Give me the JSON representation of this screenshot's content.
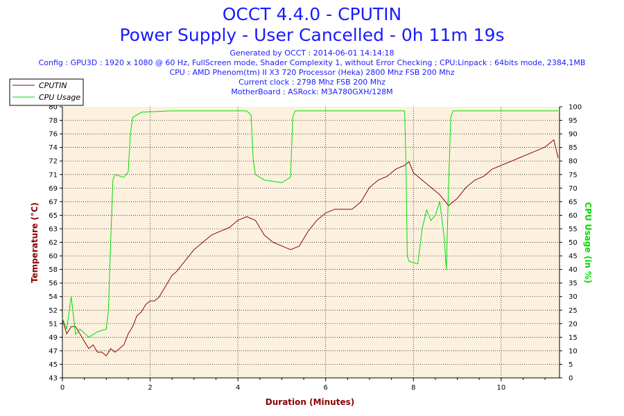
{
  "header": {
    "title": "OCCT 4.4.0 - CPUTIN",
    "subtitle": "Power Supply - User Cancelled - 0h 11m 19s",
    "info": [
      "Generated by OCCT : 2014-06-01 14:14:18",
      "Config : GPU3D : 1920 x 1080 @ 60 Hz, FullScreen mode, Shader Complexity 1, without Error Checking ; CPU:Linpack : 64bits mode, 2384,1MB",
      "CPU : AMD Phenom(tm) II X3 720 Processor (Heka) 2800 Mhz FSB 200 Mhz",
      "Current clock : 2798 Mhz FSB 200 Mhz",
      "MotherBoard : ASRock: M3A780GXH/128M"
    ]
  },
  "colors": {
    "title": "#1a1aff",
    "temperature": "#8b0000",
    "cpu_usage": "#00dd00",
    "plot_background": "#fcf1df",
    "grid": "#000000",
    "axis_title": "#8b0000"
  },
  "chart_data": {
    "type": "line",
    "xlabel": "Duration (Minutes)",
    "ylabel": "Temperature (°C)",
    "y2label": "CPU Usage (in %)",
    "xlim": [
      0,
      11.33
    ],
    "ylim": [
      43,
      80
    ],
    "y2lim": [
      0,
      100
    ],
    "x_ticks": [
      "0",
      "2",
      "4",
      "6",
      "8",
      "10"
    ],
    "y_ticks": [
      "43",
      "45",
      "47",
      "49",
      "51",
      "52",
      "54",
      "56",
      "58",
      "60",
      "62",
      "63",
      "65",
      "67",
      "69",
      "71",
      "72",
      "74",
      "76",
      "78",
      "80"
    ],
    "y2_ticks": [
      "0",
      "5",
      "10",
      "15",
      "20",
      "25",
      "30",
      "35",
      "40",
      "45",
      "50",
      "55",
      "60",
      "65",
      "70",
      "75",
      "80",
      "85",
      "90",
      "95",
      "100"
    ],
    "legend_position": "top-left",
    "grid": true,
    "series": [
      {
        "name": "CPUTIN",
        "axis": "left",
        "points": [
          [
            0.0,
            51.0
          ],
          [
            0.1,
            49.0
          ],
          [
            0.2,
            50.0
          ],
          [
            0.3,
            50.0
          ],
          [
            0.4,
            49.0
          ],
          [
            0.5,
            48.0
          ],
          [
            0.6,
            47.0
          ],
          [
            0.7,
            47.5
          ],
          [
            0.8,
            46.5
          ],
          [
            0.9,
            46.5
          ],
          [
            1.0,
            46.0
          ],
          [
            1.1,
            47.0
          ],
          [
            1.2,
            46.5
          ],
          [
            1.3,
            47.0
          ],
          [
            1.4,
            47.5
          ],
          [
            1.5,
            49.0
          ],
          [
            1.6,
            50.0
          ],
          [
            1.7,
            51.5
          ],
          [
            1.8,
            52.0
          ],
          [
            1.9,
            53.0
          ],
          [
            2.0,
            53.5
          ],
          [
            2.1,
            53.5
          ],
          [
            2.2,
            54.0
          ],
          [
            2.3,
            55.0
          ],
          [
            2.4,
            56.0
          ],
          [
            2.5,
            57.0
          ],
          [
            2.6,
            57.5
          ],
          [
            2.8,
            59.0
          ],
          [
            3.0,
            60.5
          ],
          [
            3.2,
            61.5
          ],
          [
            3.4,
            62.5
          ],
          [
            3.6,
            63.0
          ],
          [
            3.8,
            63.5
          ],
          [
            4.0,
            64.5
          ],
          [
            4.2,
            65.0
          ],
          [
            4.4,
            64.5
          ],
          [
            4.6,
            62.5
          ],
          [
            4.8,
            61.5
          ],
          [
            5.0,
            61.0
          ],
          [
            5.2,
            60.5
          ],
          [
            5.4,
            61.0
          ],
          [
            5.6,
            63.0
          ],
          [
            5.8,
            64.5
          ],
          [
            6.0,
            65.5
          ],
          [
            6.2,
            66.0
          ],
          [
            6.4,
            66.0
          ],
          [
            6.6,
            66.0
          ],
          [
            6.8,
            67.0
          ],
          [
            7.0,
            69.0
          ],
          [
            7.2,
            70.0
          ],
          [
            7.4,
            70.5
          ],
          [
            7.6,
            71.5
          ],
          [
            7.8,
            72.0
          ],
          [
            7.9,
            72.5
          ],
          [
            8.0,
            71.0
          ],
          [
            8.2,
            70.0
          ],
          [
            8.4,
            69.0
          ],
          [
            8.6,
            68.0
          ],
          [
            8.8,
            66.5
          ],
          [
            9.0,
            67.5
          ],
          [
            9.2,
            69.0
          ],
          [
            9.4,
            70.0
          ],
          [
            9.6,
            70.5
          ],
          [
            9.8,
            71.5
          ],
          [
            10.0,
            72.0
          ],
          [
            10.2,
            72.5
          ],
          [
            10.4,
            73.0
          ],
          [
            10.6,
            73.5
          ],
          [
            10.8,
            74.0
          ],
          [
            11.0,
            74.5
          ],
          [
            11.2,
            75.5
          ],
          [
            11.3,
            73.0
          ]
        ]
      },
      {
        "name": "CPU Usage",
        "axis": "right",
        "points": [
          [
            0.0,
            22.0
          ],
          [
            0.1,
            18.0
          ],
          [
            0.2,
            30.0
          ],
          [
            0.3,
            16.0
          ],
          [
            0.4,
            18.0
          ],
          [
            0.6,
            15.0
          ],
          [
            0.8,
            17.0
          ],
          [
            1.0,
            18.0
          ],
          [
            1.05,
            25.0
          ],
          [
            1.1,
            50.0
          ],
          [
            1.15,
            73.0
          ],
          [
            1.2,
            75.0
          ],
          [
            1.4,
            74.0
          ],
          [
            1.5,
            76.0
          ],
          [
            1.55,
            90.0
          ],
          [
            1.6,
            96.0
          ],
          [
            1.8,
            98.0
          ],
          [
            2.5,
            98.5
          ],
          [
            3.5,
            98.5
          ],
          [
            4.2,
            98.5
          ],
          [
            4.3,
            97.0
          ],
          [
            4.35,
            80.0
          ],
          [
            4.4,
            75.0
          ],
          [
            4.6,
            73.0
          ],
          [
            5.0,
            72.0
          ],
          [
            5.2,
            74.0
          ],
          [
            5.25,
            96.0
          ],
          [
            5.3,
            98.5
          ],
          [
            6.0,
            98.5
          ],
          [
            7.0,
            98.5
          ],
          [
            7.8,
            98.5
          ],
          [
            7.83,
            80.0
          ],
          [
            7.86,
            45.0
          ],
          [
            7.9,
            43.0
          ],
          [
            8.1,
            42.0
          ],
          [
            8.2,
            55.0
          ],
          [
            8.3,
            62.0
          ],
          [
            8.4,
            58.0
          ],
          [
            8.5,
            60.0
          ],
          [
            8.6,
            65.0
          ],
          [
            8.7,
            52.0
          ],
          [
            8.75,
            40.0
          ],
          [
            8.8,
            70.0
          ],
          [
            8.85,
            96.0
          ],
          [
            8.9,
            98.5
          ],
          [
            10.0,
            98.5
          ],
          [
            11.0,
            98.5
          ],
          [
            11.3,
            98.5
          ]
        ]
      }
    ]
  }
}
